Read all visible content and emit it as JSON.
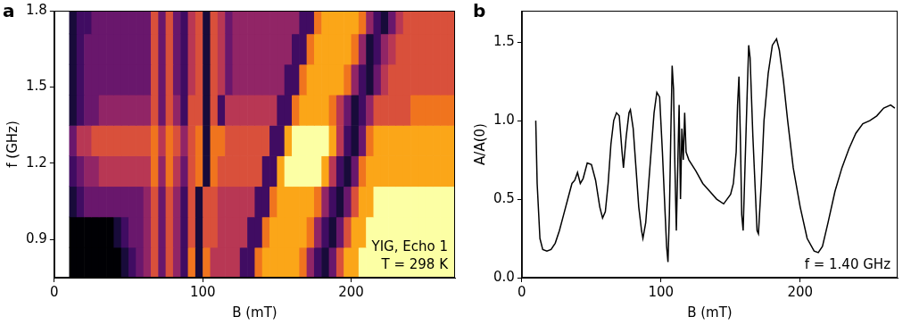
{
  "chart_data": [
    {
      "panel_label": "a",
      "type": "heatmap",
      "x_label": "B (mT)",
      "y_label": "f (GHz)",
      "annotations": [
        "YIG, Echo 1",
        "T = 298 K"
      ],
      "xlim": [
        0,
        270
      ],
      "xticks": [
        0,
        100,
        200
      ],
      "ylim": [
        0.75,
        1.8
      ],
      "yticks": [
        0.9,
        1.2,
        1.5,
        1.8
      ],
      "grid": false,
      "x_edges": [
        10,
        15,
        20,
        25,
        30,
        35,
        40,
        45,
        50,
        55,
        60,
        65,
        70,
        75,
        80,
        85,
        90,
        95,
        100,
        105,
        110,
        115,
        120,
        125,
        130,
        135,
        140,
        145,
        150,
        155,
        160,
        165,
        170,
        175,
        180,
        185,
        190,
        195,
        200,
        205,
        210,
        215,
        220,
        225,
        230,
        235,
        240,
        245,
        250,
        255,
        260,
        265,
        270
      ],
      "y_edges": [
        0.75,
        0.87,
        0.99,
        1.11,
        1.23,
        1.35,
        1.47,
        1.59,
        1.71,
        1.83
      ],
      "zlim": [
        0,
        9
      ],
      "cells": [
        [
          0,
          0,
          0,
          0,
          0,
          0,
          0,
          1,
          2,
          3,
          4,
          6,
          3,
          6,
          4,
          2,
          7,
          1,
          7,
          5,
          5,
          5,
          5,
          2,
          2,
          7,
          8,
          8,
          8,
          8,
          8,
          7,
          4,
          2,
          1,
          3,
          6,
          8,
          8,
          9,
          9,
          9,
          9,
          9,
          9,
          9,
          9,
          9,
          9,
          9,
          9,
          9
        ],
        [
          0,
          0,
          0,
          0,
          0,
          0,
          1,
          2,
          3,
          3,
          4,
          6,
          3,
          6,
          4,
          2,
          6,
          1,
          6,
          6,
          5,
          5,
          5,
          5,
          2,
          2,
          7,
          8,
          8,
          8,
          8,
          8,
          7,
          4,
          2,
          1,
          3,
          6,
          8,
          8,
          9,
          9,
          9,
          9,
          9,
          9,
          9,
          9,
          9,
          9,
          9,
          9
        ],
        [
          1,
          2,
          3,
          3,
          3,
          3,
          3,
          3,
          3,
          3,
          4,
          6,
          3,
          6,
          4,
          2,
          6,
          1,
          6,
          6,
          5,
          5,
          5,
          5,
          5,
          2,
          2,
          7,
          8,
          8,
          8,
          8,
          8,
          7,
          4,
          2,
          1,
          3,
          6,
          8,
          8,
          9,
          9,
          9,
          9,
          9,
          9,
          9,
          9,
          9,
          9,
          9
        ],
        [
          2,
          3,
          4,
          4,
          5,
          5,
          5,
          5,
          5,
          5,
          5,
          7,
          4,
          7,
          5,
          3,
          6,
          7,
          1,
          7,
          6,
          6,
          6,
          6,
          6,
          6,
          2,
          2,
          8,
          9,
          9,
          9,
          9,
          9,
          8,
          5,
          2,
          1,
          3,
          7,
          8,
          8,
          8,
          8,
          8,
          8,
          8,
          8,
          8,
          8,
          8,
          8
        ],
        [
          3,
          5,
          5,
          6,
          6,
          6,
          6,
          6,
          6,
          6,
          6,
          7,
          5,
          7,
          6,
          4,
          6,
          7,
          1,
          7,
          7,
          6,
          6,
          6,
          6,
          6,
          6,
          2,
          2,
          8,
          9,
          9,
          9,
          9,
          9,
          8,
          5,
          2,
          1,
          3,
          7,
          8,
          8,
          8,
          8,
          8,
          8,
          8,
          8,
          8,
          8,
          8
        ],
        [
          1,
          2,
          3,
          3,
          4,
          4,
          4,
          4,
          4,
          4,
          4,
          6,
          3,
          6,
          4,
          2,
          6,
          6,
          1,
          6,
          2,
          5,
          5,
          5,
          5,
          5,
          5,
          5,
          2,
          2,
          7,
          8,
          8,
          8,
          8,
          7,
          5,
          3,
          1,
          2,
          4,
          6,
          6,
          6,
          6,
          6,
          7,
          7,
          7,
          7,
          7,
          7
        ],
        [
          1,
          2,
          3,
          3,
          3,
          3,
          3,
          3,
          3,
          3,
          3,
          6,
          3,
          6,
          3,
          2,
          5,
          6,
          1,
          6,
          5,
          3,
          4,
          4,
          4,
          4,
          4,
          4,
          4,
          2,
          2,
          7,
          8,
          8,
          8,
          8,
          8,
          7,
          4,
          2,
          1,
          3,
          5,
          6,
          6,
          6,
          6,
          6,
          6,
          6,
          6,
          6
        ],
        [
          1,
          2,
          3,
          3,
          3,
          3,
          3,
          3,
          3,
          3,
          3,
          6,
          3,
          6,
          3,
          2,
          5,
          6,
          1,
          6,
          5,
          3,
          4,
          4,
          4,
          4,
          4,
          4,
          4,
          4,
          2,
          2,
          7,
          8,
          8,
          8,
          8,
          8,
          7,
          4,
          1,
          2,
          4,
          5,
          6,
          6,
          6,
          6,
          6,
          6,
          6,
          6
        ],
        [
          1,
          2,
          2,
          3,
          3,
          3,
          3,
          3,
          3,
          3,
          3,
          6,
          3,
          6,
          3,
          2,
          5,
          6,
          1,
          6,
          5,
          3,
          4,
          4,
          4,
          4,
          4,
          4,
          4,
          4,
          4,
          2,
          2,
          7,
          8,
          8,
          8,
          8,
          8,
          7,
          4,
          2,
          1,
          3,
          5,
          6,
          6,
          6,
          6,
          6,
          6,
          6
        ]
      ]
    },
    {
      "panel_label": "b",
      "type": "line",
      "x_label": "B (mT)",
      "y_label": "A/A(0)",
      "annotations": [
        "f = 1.40 GHz"
      ],
      "xlim": [
        0,
        270
      ],
      "xticks": [
        0,
        100,
        200
      ],
      "ylim": [
        0,
        1.7
      ],
      "yticks": [
        {
          "value": 0,
          "label": "0.0"
        },
        0.5,
        {
          "value": 1,
          "label": "1.0"
        },
        1.5
      ],
      "grid": false,
      "color": "#000000",
      "x": [
        10,
        11,
        13,
        15,
        18,
        21,
        24,
        27,
        30,
        33,
        36,
        38,
        40,
        42,
        44,
        47,
        50,
        53,
        56,
        58,
        60,
        62,
        64,
        66,
        68,
        70,
        72,
        73,
        75,
        77,
        78,
        80,
        82,
        84,
        86,
        87,
        89,
        92,
        95,
        97,
        99,
        101,
        103,
        104,
        105,
        106,
        107,
        108,
        109,
        110,
        111,
        112,
        113,
        114,
        115,
        116,
        117,
        118,
        120,
        125,
        130,
        135,
        140,
        145,
        150,
        152,
        154,
        155,
        156,
        157,
        158,
        159,
        160,
        162,
        163,
        164,
        166,
        168,
        169,
        170,
        172,
        174,
        177,
        180,
        183,
        185,
        188,
        191,
        195,
        200,
        205,
        210,
        213,
        216,
        220,
        225,
        230,
        235,
        240,
        245,
        250,
        255,
        260,
        265,
        268
      ],
      "values": [
        1.0,
        0.6,
        0.25,
        0.18,
        0.17,
        0.18,
        0.22,
        0.3,
        0.4,
        0.5,
        0.6,
        0.62,
        0.67,
        0.6,
        0.63,
        0.73,
        0.72,
        0.62,
        0.45,
        0.38,
        0.42,
        0.6,
        0.85,
        1.0,
        1.05,
        1.03,
        0.8,
        0.7,
        0.9,
        1.05,
        1.07,
        0.95,
        0.7,
        0.45,
        0.3,
        0.25,
        0.35,
        0.7,
        1.05,
        1.18,
        1.15,
        0.8,
        0.4,
        0.2,
        0.1,
        0.4,
        0.9,
        1.35,
        1.2,
        0.7,
        0.3,
        0.7,
        1.1,
        0.5,
        0.95,
        0.75,
        1.05,
        0.8,
        0.75,
        0.68,
        0.6,
        0.55,
        0.5,
        0.47,
        0.53,
        0.6,
        0.8,
        1.1,
        1.28,
        0.9,
        0.4,
        0.3,
        0.6,
        1.2,
        1.48,
        1.4,
        0.9,
        0.5,
        0.3,
        0.28,
        0.6,
        1.0,
        1.3,
        1.48,
        1.52,
        1.45,
        1.25,
        1.0,
        0.7,
        0.45,
        0.25,
        0.17,
        0.16,
        0.2,
        0.35,
        0.55,
        0.7,
        0.82,
        0.92,
        0.98,
        1.0,
        1.03,
        1.08,
        1.1,
        1.08
      ]
    }
  ]
}
